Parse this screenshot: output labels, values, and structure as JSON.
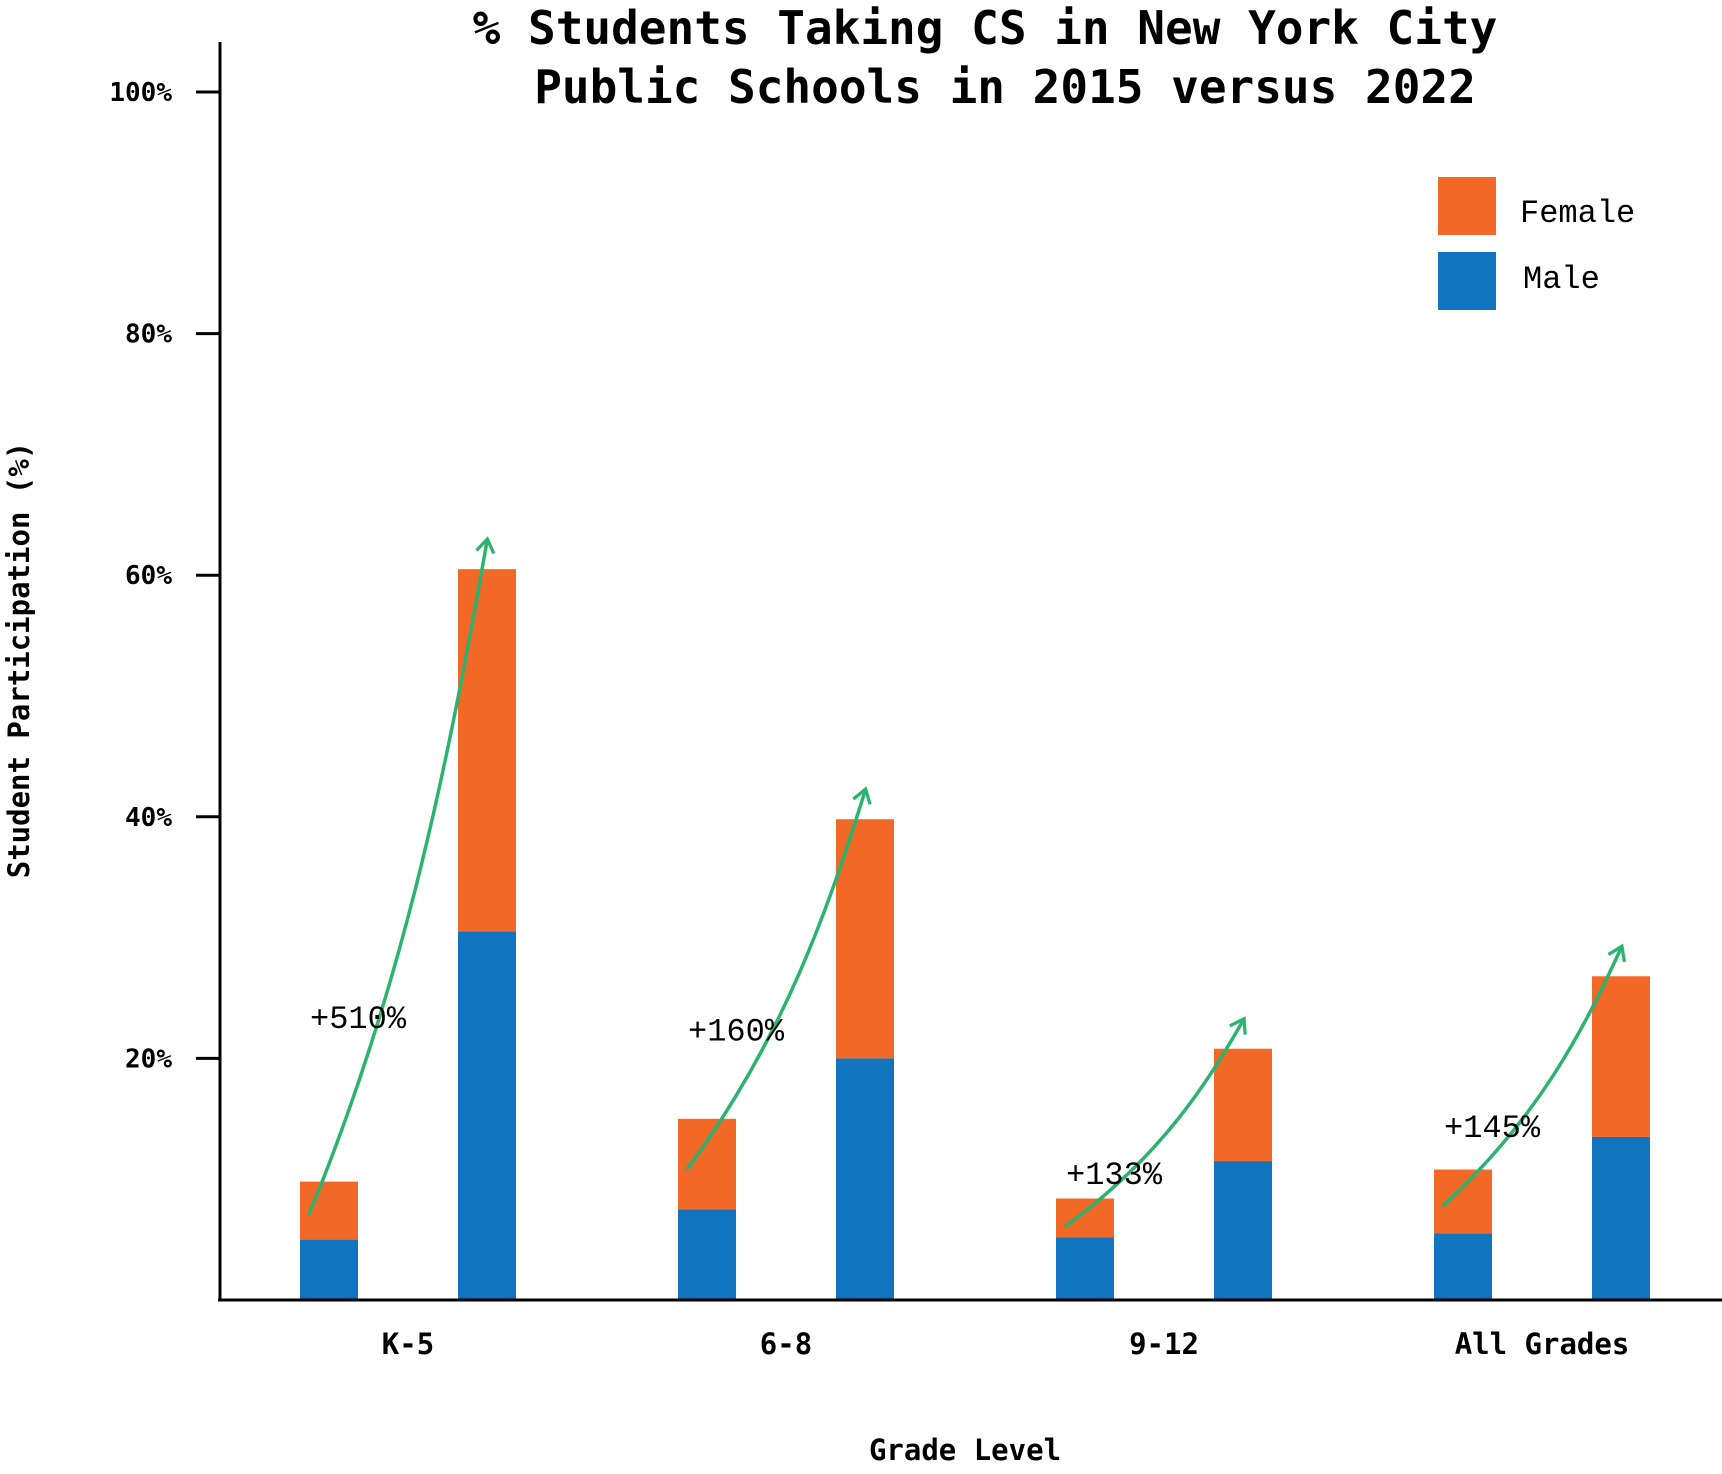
{
  "chart_data": {
    "type": "bar",
    "stacked": true,
    "title_lines": [
      "% Students Taking CS in New York City",
      "Public Schools in 2015 versus 2022"
    ],
    "xlabel": "Grade Level",
    "ylabel": "Student Participation (%)",
    "ylim": [
      0,
      104
    ],
    "yticks": [
      {
        "value": 20,
        "label": "20%"
      },
      {
        "value": 40,
        "label": "40%"
      },
      {
        "value": 60,
        "label": "60%"
      },
      {
        "value": 80,
        "label": "80%"
      },
      {
        "value": 100,
        "label": "100%"
      }
    ],
    "categories": [
      "K-5",
      "6-8",
      "9-12",
      "All Grades"
    ],
    "bar_years": [
      "2015",
      "2022"
    ],
    "series": [
      {
        "name": "Male",
        "color": "#1174be",
        "values_2015": [
          5,
          7.5,
          5.2,
          5.5
        ],
        "values_2022": [
          30.5,
          20,
          11.5,
          13.5
        ]
      },
      {
        "name": "Female",
        "color": "#f26826",
        "values_2015": [
          4.8,
          7.5,
          3.2,
          5.3
        ],
        "values_2022": [
          30,
          19.8,
          9.3,
          13.3
        ]
      }
    ],
    "annotations": [
      "+510%",
      "+160%",
      "+133%",
      "+145%"
    ],
    "arrow_color": "#2db36f",
    "legend": {
      "position": "top-right",
      "entries": [
        "Female",
        "Male"
      ]
    },
    "grid": false
  }
}
